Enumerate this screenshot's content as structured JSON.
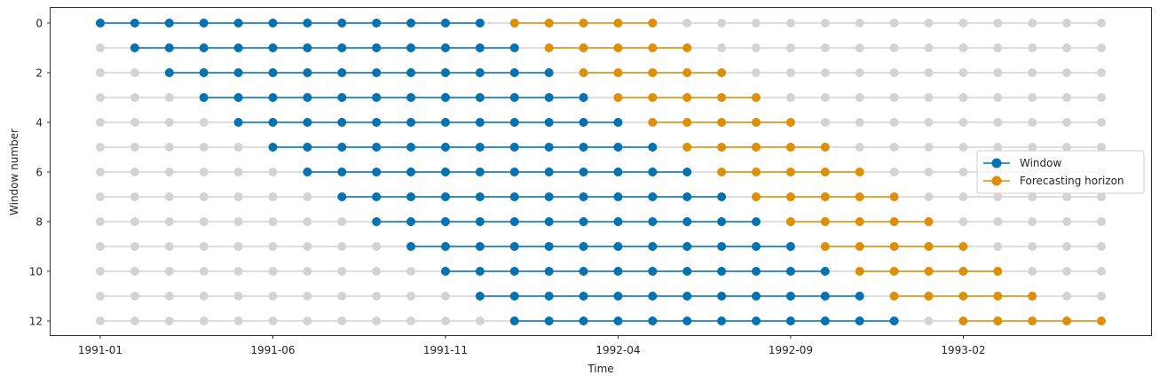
{
  "chart_data": {
    "type": "line",
    "title": "",
    "xlabel": "Time",
    "ylabel": "Window number",
    "x_ticks": [
      "1991-01",
      "1991-06",
      "1991-11",
      "1992-04",
      "1992-09",
      "1993-02"
    ],
    "x_tick_positions": [
      0,
      5,
      10,
      15,
      20,
      25
    ],
    "y_ticks": [
      0,
      2,
      4,
      6,
      8,
      10,
      12
    ],
    "y_axis_inverted": true,
    "timeline": [
      "1991-01",
      "1991-02",
      "1991-03",
      "1991-04",
      "1991-05",
      "1991-06",
      "1991-07",
      "1991-08",
      "1991-09",
      "1991-10",
      "1991-11",
      "1991-12",
      "1992-01",
      "1992-02",
      "1992-03",
      "1992-04",
      "1992-05",
      "1992-06",
      "1992-07",
      "1992-08",
      "1992-09",
      "1992-10",
      "1992-11",
      "1992-12",
      "1993-01",
      "1993-02",
      "1993-03",
      "1993-04",
      "1993-05",
      "1993-06"
    ],
    "windows": [
      {
        "window": 0,
        "train": [
          "1991-01",
          "1991-12"
        ],
        "horizon": [
          "1992-01",
          "1992-05"
        ]
      },
      {
        "window": 1,
        "train": [
          "1991-02",
          "1992-01"
        ],
        "horizon": [
          "1992-02",
          "1992-06"
        ]
      },
      {
        "window": 2,
        "train": [
          "1991-03",
          "1992-02"
        ],
        "horizon": [
          "1992-03",
          "1992-07"
        ]
      },
      {
        "window": 3,
        "train": [
          "1991-04",
          "1992-03"
        ],
        "horizon": [
          "1992-04",
          "1992-08"
        ]
      },
      {
        "window": 4,
        "train": [
          "1991-05",
          "1992-04"
        ],
        "horizon": [
          "1992-05",
          "1992-09"
        ]
      },
      {
        "window": 5,
        "train": [
          "1991-06",
          "1992-05"
        ],
        "horizon": [
          "1992-06",
          "1992-10"
        ]
      },
      {
        "window": 6,
        "train": [
          "1991-07",
          "1992-06"
        ],
        "horizon": [
          "1992-07",
          "1992-11"
        ]
      },
      {
        "window": 7,
        "train": [
          "1991-08",
          "1992-07"
        ],
        "horizon": [
          "1992-08",
          "1992-12"
        ]
      },
      {
        "window": 8,
        "train": [
          "1991-09",
          "1992-08"
        ],
        "horizon": [
          "1992-09",
          "1993-01"
        ]
      },
      {
        "window": 9,
        "train": [
          "1991-10",
          "1992-09"
        ],
        "horizon": [
          "1992-10",
          "1993-02"
        ]
      },
      {
        "window": 10,
        "train": [
          "1991-11",
          "1992-10"
        ],
        "horizon": [
          "1992-11",
          "1993-03"
        ]
      },
      {
        "window": 11,
        "train": [
          "1991-12",
          "1992-11"
        ],
        "horizon": [
          "1992-12",
          "1993-04"
        ]
      },
      {
        "window": 12,
        "train": [
          "1992-01",
          "1992-12"
        ],
        "horizon": [
          "1993-02",
          "1993-06"
        ]
      }
    ],
    "series": [
      {
        "name": "Window",
        "color": "#0173b2"
      },
      {
        "name": "Forecasting horizon",
        "color": "#de8f05"
      }
    ],
    "background_points_color": "#d3d3d3",
    "legend_position": "right",
    "grid": false
  }
}
